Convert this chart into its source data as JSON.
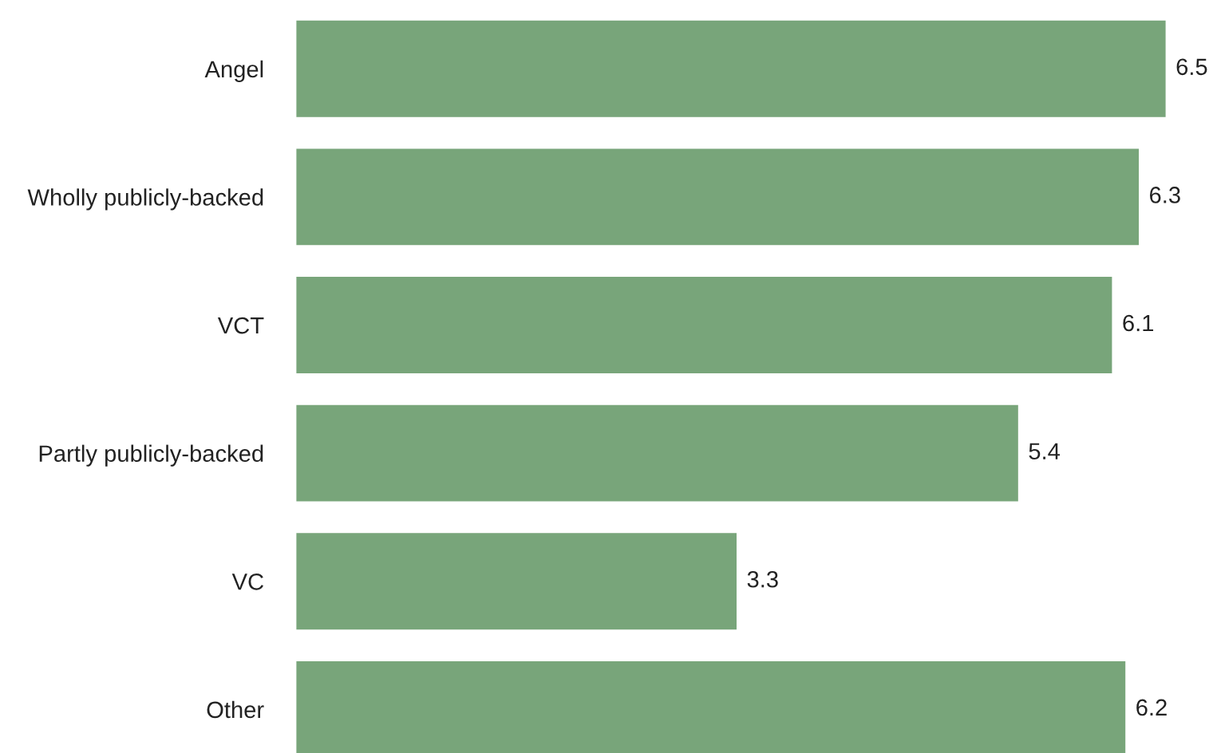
{
  "chart_data": {
    "type": "bar",
    "orientation": "horizontal",
    "categories": [
      "Angel",
      "Wholly publicly-backed",
      "VCT",
      "Partly publicly-backed",
      "VC",
      "Other"
    ],
    "values": [
      6.5,
      6.3,
      6.1,
      5.4,
      3.3,
      6.2
    ],
    "color": "#78a57a",
    "data_labels": true,
    "grid": false,
    "legend": false
  }
}
